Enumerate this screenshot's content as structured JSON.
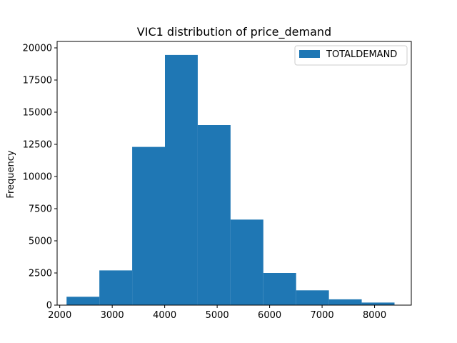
{
  "chart_data": {
    "type": "bar",
    "title": "VIC1 distribution of price_demand",
    "xlabel": "",
    "ylabel": "Frequency",
    "xlim": [
      1950,
      8700
    ],
    "ylim": [
      0,
      20500
    ],
    "grid": false,
    "legend_position": "top-right",
    "x_ticks": [
      2000,
      3000,
      4000,
      5000,
      6000,
      7000,
      8000
    ],
    "y_ticks": [
      0,
      2500,
      5000,
      7500,
      10000,
      12500,
      15000,
      17500,
      20000
    ],
    "series": [
      {
        "name": "TOTALDEMAND",
        "color": "#1f77b4",
        "bins": [
          {
            "start": 2130,
            "end": 2755,
            "count": 650
          },
          {
            "start": 2755,
            "end": 3380,
            "count": 2700
          },
          {
            "start": 3380,
            "end": 4005,
            "count": 12300
          },
          {
            "start": 4005,
            "end": 4630,
            "count": 19450
          },
          {
            "start": 4630,
            "end": 5255,
            "count": 14000
          },
          {
            "start": 5255,
            "end": 5880,
            "count": 6650
          },
          {
            "start": 5880,
            "end": 6505,
            "count": 2500
          },
          {
            "start": 6505,
            "end": 7130,
            "count": 1150
          },
          {
            "start": 7130,
            "end": 7755,
            "count": 450
          },
          {
            "start": 7755,
            "end": 8380,
            "count": 200
          }
        ]
      }
    ]
  }
}
